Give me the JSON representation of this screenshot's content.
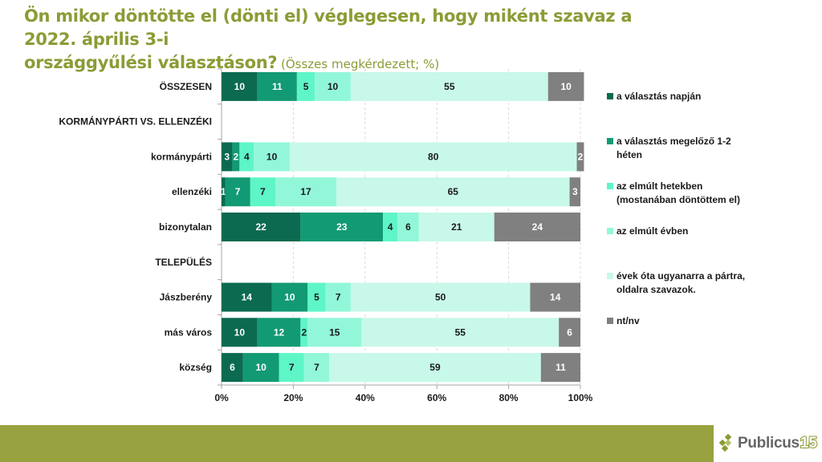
{
  "header": {
    "title_line1": "Ön mikor döntötte el (dönti el) véglegesen, hogy miként szavaz a 2022. április 3-i",
    "title_line2": "országgyűlési választáson?",
    "subtitle": " (Összes megkérdezett; %)"
  },
  "colors": {
    "title": "#8c9b35",
    "footer": "#98a33f",
    "series": [
      "#0b6a4f",
      "#129a74",
      "#5ef5c7",
      "#92f7d9",
      "#c8f8e9",
      "#808080"
    ]
  },
  "chart_data": {
    "type": "bar",
    "orientation": "horizontal",
    "stacked": "percent",
    "title": "Ön mikor döntötte el (dönti el) véglegesen, hogy miként szavaz a 2022. április 3-i országgyűlési választáson?",
    "categories": [
      "ÖSSZESEN",
      "KORMÁNYPÁRTI VS. ELLENZÉKI",
      "kormánypárti",
      "ellenzéki",
      "bizonytalan",
      "TELEPÜLÉS",
      "Jászberény",
      "más város",
      "község"
    ],
    "series": [
      {
        "name": "a választás napján",
        "values": [
          10,
          null,
          3,
          1,
          22,
          null,
          14,
          10,
          6
        ]
      },
      {
        "name": "a választás megelőző 1-2 héten",
        "values": [
          11,
          null,
          2,
          7,
          23,
          null,
          10,
          12,
          10
        ]
      },
      {
        "name": "az elmúlt hetekben (mostanában döntöttem el)",
        "values": [
          5,
          null,
          4,
          7,
          4,
          null,
          5,
          2,
          7
        ]
      },
      {
        "name": "az elmúlt évben",
        "values": [
          10,
          null,
          10,
          17,
          6,
          null,
          7,
          15,
          7
        ]
      },
      {
        "name": "évek óta ugyanarra a pártra, oldalra szavazok.",
        "values": [
          55,
          null,
          80,
          65,
          21,
          null,
          50,
          55,
          59
        ]
      },
      {
        "name": "nt/nv",
        "values": [
          10,
          null,
          2,
          3,
          24,
          null,
          14,
          6,
          11
        ]
      }
    ],
    "xlim": [
      0,
      100
    ],
    "xticks": [
      "0%",
      "20%",
      "40%",
      "60%",
      "80%",
      "100%"
    ],
    "grid": "vertical dashed",
    "legend": "right"
  },
  "legend": {
    "items": [
      {
        "line1": "a választás napján",
        "line2": ""
      },
      {
        "line1": "a választás megelőző 1-2",
        "line2": "héten"
      },
      {
        "line1": "az elmúlt hetekben",
        "line2": "(mostanában döntöttem el)"
      },
      {
        "line1": "az elmúlt évben",
        "line2": ""
      },
      {
        "line1": "évek óta ugyanarra a pártra,",
        "line2": "oldalra szavazok."
      },
      {
        "line1": "nt/nv",
        "line2": ""
      }
    ]
  },
  "logo": {
    "text": "Publicus",
    "number": "15"
  }
}
